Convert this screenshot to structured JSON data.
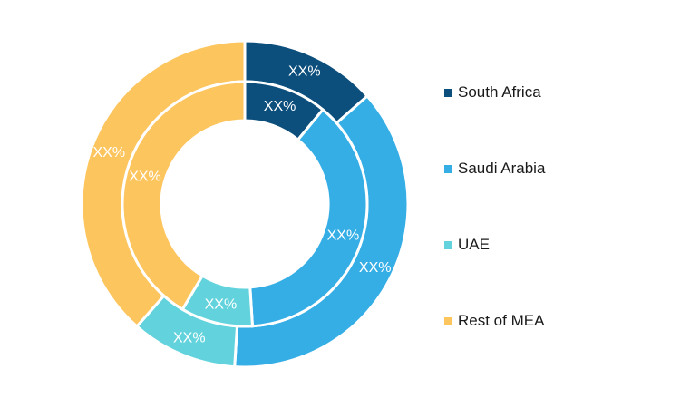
{
  "chart_data": {
    "type": "pie",
    "variant": "nested-donut",
    "categories": [
      "South Africa",
      "Saudi Arabia",
      "UAE",
      "Rest of MEA"
    ],
    "colors": [
      "#0d4f7c",
      "#35aee6",
      "#62d3dc",
      "#fdc55e"
    ],
    "series": [
      {
        "ring": "outer",
        "values": [
          13.5,
          37.5,
          10.5,
          38.5
        ],
        "labels": [
          "XX%",
          "XX%",
          "XX%",
          "XX%"
        ]
      },
      {
        "ring": "inner",
        "values": [
          11,
          38,
          9.5,
          41.5
        ],
        "labels": [
          "XX%",
          "XX%",
          "XX%",
          "XX%"
        ]
      }
    ],
    "legend_position": "right"
  }
}
